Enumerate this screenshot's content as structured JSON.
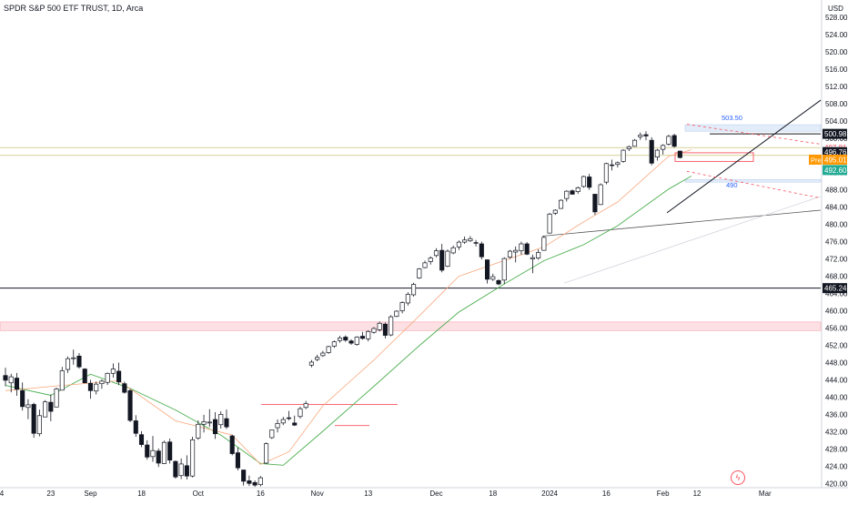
{
  "title": "SPDR S&P 500 ETF TRUST, 1D, Arca",
  "chart_data": {
    "type": "candlestick",
    "currency": "USD",
    "ylim": [
      419,
      532
    ],
    "y_ticks": [
      "528.00",
      "524.00",
      "520.00",
      "516.00",
      "512.00",
      "508.00",
      "504.00",
      "500.00",
      "496.00",
      "492.00",
      "488.00",
      "484.00",
      "480.00",
      "476.00",
      "472.00",
      "468.00",
      "464.00",
      "460.00",
      "456.00",
      "452.00",
      "448.00",
      "444.00",
      "440.00",
      "436.00",
      "432.00",
      "428.00",
      "424.00",
      "420.00"
    ],
    "x_ticks": [
      "14",
      "23",
      "Sep",
      "18",
      "Oct",
      "16",
      "Nov",
      "13",
      "Dec",
      "18",
      "2024",
      "16",
      "Feb",
      "12",
      "Mar"
    ],
    "candles": [
      {
        "o": 445.0,
        "h": 446.8,
        "l": 442.5,
        "c": 443.9
      },
      {
        "o": 443.3,
        "h": 445.4,
        "l": 441.1,
        "c": 444.7
      },
      {
        "o": 444.4,
        "h": 445.6,
        "l": 440.3,
        "c": 441.8
      },
      {
        "o": 441.5,
        "h": 443.4,
        "l": 436.9,
        "c": 437.8
      },
      {
        "o": 437.6,
        "h": 439.5,
        "l": 434.9,
        "c": 438.2
      },
      {
        "o": 438.3,
        "h": 438.7,
        "l": 430.6,
        "c": 431.6
      },
      {
        "o": 431.5,
        "h": 437.1,
        "l": 430.9,
        "c": 435.7
      },
      {
        "o": 435.4,
        "h": 439.3,
        "l": 435.4,
        "c": 438.9
      },
      {
        "o": 438.8,
        "h": 440.6,
        "l": 434.4,
        "c": 436.7
      },
      {
        "o": 437.7,
        "h": 442.2,
        "l": 437.7,
        "c": 441.9
      },
      {
        "o": 441.6,
        "h": 447.0,
        "l": 441.6,
        "c": 446.1
      },
      {
        "o": 446.4,
        "h": 449.4,
        "l": 445.6,
        "c": 448.9
      },
      {
        "o": 448.9,
        "h": 451.0,
        "l": 447.5,
        "c": 449.1
      },
      {
        "o": 449.5,
        "h": 450.2,
        "l": 446.6,
        "c": 447.0
      },
      {
        "o": 446.5,
        "h": 446.7,
        "l": 443.2,
        "c": 443.3
      },
      {
        "o": 443.2,
        "h": 444.0,
        "l": 439.6,
        "c": 441.5
      },
      {
        "o": 441.4,
        "h": 443.6,
        "l": 440.6,
        "c": 443.0
      },
      {
        "o": 443.1,
        "h": 444.1,
        "l": 441.9,
        "c": 443.7
      },
      {
        "o": 443.4,
        "h": 445.7,
        "l": 442.8,
        "c": 445.5
      },
      {
        "o": 445.5,
        "h": 447.8,
        "l": 444.5,
        "c": 446.5
      },
      {
        "o": 446.0,
        "h": 448.0,
        "l": 442.8,
        "c": 443.5
      },
      {
        "o": 443.1,
        "h": 443.6,
        "l": 440.8,
        "c": 441.1
      },
      {
        "o": 441.5,
        "h": 441.9,
        "l": 434.2,
        "c": 434.6
      },
      {
        "o": 434.5,
        "h": 435.8,
        "l": 430.8,
        "c": 431.6
      },
      {
        "o": 431.3,
        "h": 432.1,
        "l": 428.4,
        "c": 429.0
      },
      {
        "o": 428.9,
        "h": 430.0,
        "l": 425.5,
        "c": 426.1
      },
      {
        "o": 426.2,
        "h": 431.0,
        "l": 425.0,
        "c": 427.6
      },
      {
        "o": 427.5,
        "h": 428.1,
        "l": 423.8,
        "c": 424.7
      },
      {
        "o": 424.6,
        "h": 429.9,
        "l": 424.5,
        "c": 429.5
      },
      {
        "o": 429.6,
        "h": 430.4,
        "l": 424.6,
        "c": 425.4
      },
      {
        "o": 425.1,
        "h": 425.3,
        "l": 421.1,
        "c": 421.5
      },
      {
        "o": 421.8,
        "h": 425.8,
        "l": 421.0,
        "c": 424.5
      },
      {
        "o": 424.1,
        "h": 426.5,
        "l": 420.9,
        "c": 421.7
      },
      {
        "o": 421.7,
        "h": 430.8,
        "l": 421.4,
        "c": 430.1
      },
      {
        "o": 430.5,
        "h": 434.6,
        "l": 430.1,
        "c": 433.7
      },
      {
        "o": 433.7,
        "h": 435.9,
        "l": 431.8,
        "c": 434.3
      },
      {
        "o": 434.0,
        "h": 437.2,
        "l": 433.1,
        "c": 434.2
      },
      {
        "o": 434.8,
        "h": 436.5,
        "l": 430.3,
        "c": 431.5
      },
      {
        "o": 433.6,
        "h": 436.7,
        "l": 432.7,
        "c": 436.0
      },
      {
        "o": 435.0,
        "h": 437.1,
        "l": 432.6,
        "c": 433.1
      },
      {
        "o": 431.0,
        "h": 431.3,
        "l": 426.5,
        "c": 426.9
      },
      {
        "o": 427.1,
        "h": 428.3,
        "l": 423.0,
        "c": 423.6
      },
      {
        "o": 423.1,
        "h": 423.2,
        "l": 419.5,
        "c": 420.5
      },
      {
        "o": 420.6,
        "h": 421.8,
        "l": 419.4,
        "c": 420.0
      },
      {
        "o": 420.2,
        "h": 420.7,
        "l": 419.2,
        "c": 419.6
      },
      {
        "o": 419.7,
        "h": 421.7,
        "l": 419.3,
        "c": 421.3
      },
      {
        "o": 424.7,
        "h": 429.5,
        "l": 424.5,
        "c": 429.2
      },
      {
        "o": 430.6,
        "h": 432.4,
        "l": 430.3,
        "c": 432.4
      },
      {
        "o": 432.9,
        "h": 434.8,
        "l": 431.8,
        "c": 433.9
      },
      {
        "o": 434.0,
        "h": 435.4,
        "l": 433.5,
        "c": 434.8
      },
      {
        "o": 435.2,
        "h": 436.8,
        "l": 434.6,
        "c": 435.1
      },
      {
        "o": 434.0,
        "h": 435.7,
        "l": 433.3,
        "c": 433.5
      },
      {
        "o": 435.5,
        "h": 437.8,
        "l": 435.0,
        "c": 437.3
      },
      {
        "o": 437.6,
        "h": 439.1,
        "l": 437.2,
        "c": 438.5
      },
      {
        "o": 447.4,
        "h": 448.6,
        "l": 446.9,
        "c": 448.1
      },
      {
        "o": 448.7,
        "h": 449.8,
        "l": 448.3,
        "c": 449.2
      },
      {
        "o": 449.6,
        "h": 450.7,
        "l": 449.3,
        "c": 450.2
      },
      {
        "o": 450.3,
        "h": 451.9,
        "l": 450.0,
        "c": 451.7
      },
      {
        "o": 451.8,
        "h": 453.1,
        "l": 451.4,
        "c": 452.8
      },
      {
        "o": 453.1,
        "h": 454.2,
        "l": 452.6,
        "c": 453.7
      },
      {
        "o": 453.9,
        "h": 454.3,
        "l": 452.8,
        "c": 453.2
      },
      {
        "o": 453.0,
        "h": 453.4,
        "l": 452.1,
        "c": 452.5
      },
      {
        "o": 452.2,
        "h": 454.1,
        "l": 451.9,
        "c": 453.9
      },
      {
        "o": 454.1,
        "h": 455.1,
        "l": 453.3,
        "c": 453.6
      },
      {
        "o": 453.5,
        "h": 455.5,
        "l": 452.9,
        "c": 455.2
      },
      {
        "o": 455.0,
        "h": 456.2,
        "l": 454.7,
        "c": 455.9
      },
      {
        "o": 455.6,
        "h": 457.5,
        "l": 455.2,
        "c": 457.1
      },
      {
        "o": 456.9,
        "h": 457.3,
        "l": 453.6,
        "c": 454.3
      },
      {
        "o": 454.4,
        "h": 459.0,
        "l": 454.1,
        "c": 458.6
      },
      {
        "o": 458.7,
        "h": 460.1,
        "l": 458.5,
        "c": 459.9
      },
      {
        "o": 460.0,
        "h": 462.2,
        "l": 459.4,
        "c": 461.9
      },
      {
        "o": 461.8,
        "h": 464.3,
        "l": 461.2,
        "c": 463.8
      },
      {
        "o": 463.7,
        "h": 466.5,
        "l": 463.3,
        "c": 466.1
      },
      {
        "o": 467.6,
        "h": 469.9,
        "l": 467.4,
        "c": 469.7
      },
      {
        "o": 470.0,
        "h": 471.6,
        "l": 469.8,
        "c": 471.1
      },
      {
        "o": 471.4,
        "h": 472.6,
        "l": 470.7,
        "c": 472.2
      },
      {
        "o": 472.8,
        "h": 474.5,
        "l": 472.4,
        "c": 473.9
      },
      {
        "o": 474.0,
        "h": 475.5,
        "l": 468.9,
        "c": 469.4
      },
      {
        "o": 470.3,
        "h": 474.2,
        "l": 470.1,
        "c": 473.8
      },
      {
        "o": 473.4,
        "h": 475.1,
        "l": 473.1,
        "c": 474.6
      },
      {
        "o": 474.8,
        "h": 476.3,
        "l": 474.1,
        "c": 475.9
      },
      {
        "o": 475.9,
        "h": 477.2,
        "l": 475.5,
        "c": 476.4
      },
      {
        "o": 476.2,
        "h": 477.3,
        "l": 475.9,
        "c": 476.7
      },
      {
        "o": 475.8,
        "h": 476.4,
        "l": 474.9,
        "c": 475.7
      },
      {
        "o": 475.5,
        "h": 476.0,
        "l": 471.9,
        "c": 472.5
      },
      {
        "o": 471.8,
        "h": 471.9,
        "l": 466.3,
        "c": 467.3
      },
      {
        "o": 467.3,
        "h": 468.6,
        "l": 466.9,
        "c": 467.9
      },
      {
        "o": 467.0,
        "h": 467.3,
        "l": 465.9,
        "c": 466.2
      },
      {
        "o": 467.1,
        "h": 472.4,
        "l": 466.2,
        "c": 472.1
      },
      {
        "o": 472.4,
        "h": 474.1,
        "l": 472.0,
        "c": 473.8
      },
      {
        "o": 473.6,
        "h": 474.9,
        "l": 471.2,
        "c": 474.0
      },
      {
        "o": 473.9,
        "h": 476.0,
        "l": 473.0,
        "c": 475.5
      },
      {
        "o": 475.5,
        "h": 475.9,
        "l": 472.9,
        "c": 473.1
      },
      {
        "o": 472.0,
        "h": 473.0,
        "l": 468.7,
        "c": 472.3
      },
      {
        "o": 472.2,
        "h": 474.2,
        "l": 471.8,
        "c": 473.5
      },
      {
        "o": 474.0,
        "h": 477.3,
        "l": 473.9,
        "c": 477.0
      },
      {
        "o": 478.0,
        "h": 482.7,
        "l": 477.9,
        "c": 482.4
      },
      {
        "o": 482.6,
        "h": 483.5,
        "l": 482.2,
        "c": 483.3
      },
      {
        "o": 483.7,
        "h": 485.8,
        "l": 483.6,
        "c": 485.6
      },
      {
        "o": 486.0,
        "h": 487.9,
        "l": 485.3,
        "c": 487.7
      },
      {
        "o": 487.8,
        "h": 488.1,
        "l": 486.9,
        "c": 487.0
      },
      {
        "o": 487.6,
        "h": 488.8,
        "l": 487.1,
        "c": 488.5
      },
      {
        "o": 488.8,
        "h": 491.3,
        "l": 488.5,
        "c": 491.1
      },
      {
        "o": 491.0,
        "h": 491.7,
        "l": 488.0,
        "c": 488.6
      },
      {
        "o": 487.0,
        "h": 487.1,
        "l": 482.2,
        "c": 482.9
      },
      {
        "o": 484.6,
        "h": 489.5,
        "l": 484.5,
        "c": 489.2
      },
      {
        "o": 489.8,
        "h": 494.3,
        "l": 489.3,
        "c": 494.1
      },
      {
        "o": 493.8,
        "h": 495.0,
        "l": 492.5,
        "c": 493.7
      },
      {
        "o": 493.9,
        "h": 494.6,
        "l": 493.2,
        "c": 494.3
      },
      {
        "o": 494.6,
        "h": 497.4,
        "l": 494.3,
        "c": 497.2
      },
      {
        "o": 497.5,
        "h": 498.3,
        "l": 497.0,
        "c": 498.0
      },
      {
        "o": 498.1,
        "h": 499.8,
        "l": 498.0,
        "c": 499.5
      },
      {
        "o": 500.3,
        "h": 501.3,
        "l": 499.6,
        "c": 500.7
      },
      {
        "o": 500.8,
        "h": 501.6,
        "l": 499.5,
        "c": 500.5
      },
      {
        "o": 499.5,
        "h": 500.2,
        "l": 493.7,
        "c": 494.2
      },
      {
        "o": 495.6,
        "h": 497.5,
        "l": 494.8,
        "c": 497.2
      },
      {
        "o": 497.4,
        "h": 498.6,
        "l": 496.2,
        "c": 498.3
      },
      {
        "o": 498.6,
        "h": 500.8,
        "l": 498.3,
        "c": 500.4
      },
      {
        "o": 500.6,
        "h": 501.0,
        "l": 497.8,
        "c": 498.1
      },
      {
        "o": 497.0,
        "h": 497.1,
        "l": 495.3,
        "c": 495.5
      }
    ],
    "ema_fast": [
      [
        0,
        441.5
      ],
      [
        10,
        442.7
      ],
      [
        20,
        443.8
      ],
      [
        30,
        434.5
      ],
      [
        40,
        431.2
      ],
      [
        45,
        424.4
      ],
      [
        50,
        427.3
      ],
      [
        56,
        438.0
      ],
      [
        65,
        448.6
      ],
      [
        73,
        458.8
      ],
      [
        80,
        468.0
      ],
      [
        95,
        474.8
      ],
      [
        102,
        480.6
      ],
      [
        108,
        485.2
      ],
      [
        117,
        495.8
      ],
      [
        121,
        497.3
      ]
    ],
    "ema_slow": [
      [
        0,
        442.7
      ],
      [
        8,
        440.4
      ],
      [
        15,
        445.3
      ],
      [
        22,
        442.0
      ],
      [
        30,
        437.0
      ],
      [
        38,
        431.2
      ],
      [
        45,
        424.6
      ],
      [
        49,
        424.2
      ],
      [
        56,
        432.1
      ],
      [
        65,
        442.5
      ],
      [
        73,
        451.9
      ],
      [
        80,
        459.7
      ],
      [
        88,
        466.2
      ],
      [
        95,
        471.6
      ],
      [
        102,
        475.3
      ],
      [
        108,
        479.7
      ],
      [
        117,
        488.2
      ],
      [
        121,
        491.2
      ]
    ],
    "horizontal_levels": [
      {
        "label": "465.24",
        "price": 465.24,
        "color": "#131722"
      },
      {
        "label": "500.98",
        "price": 500.98,
        "color": "#131722"
      },
      {
        "label": "497.81",
        "price": 497.81,
        "color": "#f7525f"
      },
      {
        "label": "496.76",
        "price": 496.76,
        "color": "#131722"
      },
      {
        "label": "495.01",
        "price": 495.01,
        "color": "#ff9800"
      },
      {
        "label": "492.60",
        "price": 492.6,
        "color": "#22ab94"
      }
    ],
    "pre_label": "Pre",
    "annotations": {
      "high": "503.50",
      "low": "490"
    }
  }
}
